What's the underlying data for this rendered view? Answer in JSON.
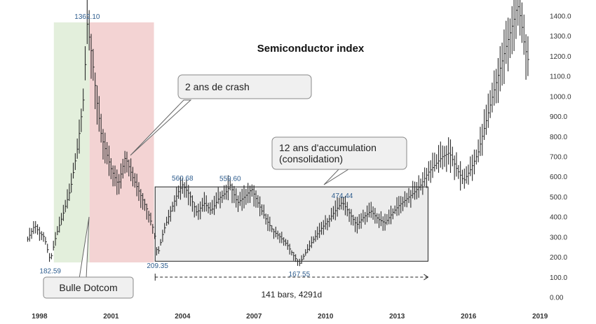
{
  "chart_data": {
    "type": "line",
    "title": "Semiconductor index",
    "x_tick_labels": [
      "1998",
      "2001",
      "2004",
      "2007",
      "2010",
      "2013",
      "2016",
      "2019"
    ],
    "y_tick_labels": [
      "0.00",
      "100.0",
      "200.0",
      "300.0",
      "400.0",
      "500.0",
      "600.0",
      "700.0",
      "800.0",
      "900.0",
      "1000.0",
      "1100.0",
      "1200.0",
      "1300.0",
      "1400.0"
    ],
    "ylim": [
      0,
      1400
    ],
    "xlim": [
      1997.4,
      2018.7
    ],
    "grid": false,
    "series": [
      {
        "x": [
          1997.5,
          1997.8,
          1998.0,
          1998.2,
          1998.45,
          1998.7,
          1999.0,
          1999.3,
          1999.6,
          1999.85,
          2000.0,
          2000.2,
          2000.4,
          2000.6,
          2000.8,
          2001.0,
          2001.3,
          2001.6,
          2001.9,
          2002.2,
          2002.5,
          2002.8,
          2002.95,
          2003.2,
          2003.5,
          2003.8,
          2004.0,
          2004.3,
          2004.6,
          2004.9,
          2005.2,
          2005.5,
          2005.8,
          2006.0,
          2006.3,
          2006.6,
          2006.9,
          2007.2,
          2007.5,
          2007.8,
          2008.1,
          2008.4,
          2008.7,
          2008.9,
          2009.2,
          2009.5,
          2009.8,
          2010.1,
          2010.4,
          2010.7,
          2011.0,
          2011.3,
          2011.6,
          2011.9,
          2012.2,
          2012.5,
          2012.8,
          2013.1,
          2013.4,
          2013.7,
          2014.0,
          2014.3,
          2014.6,
          2014.9,
          2015.2,
          2015.5,
          2015.8,
          2016.1,
          2016.4,
          2016.7,
          2017.0,
          2017.3,
          2017.6,
          2017.9,
          2018.05,
          2018.2,
          2018.35,
          2018.5
        ],
        "values": [
          290,
          360,
          320,
          300,
          182.59,
          310,
          420,
          540,
          750,
          1000,
          1362.1,
          1200,
          980,
          800,
          720,
          640,
          560,
          700,
          600,
          520,
          440,
          330,
          209.35,
          330,
          430,
          520,
          560.68,
          510,
          420,
          470,
          430,
          490,
          520,
          559.6,
          470,
          500,
          540,
          460,
          390,
          330,
          300,
          260,
          200,
          167.55,
          230,
          290,
          340,
          380,
          430,
          474.44,
          420,
          360,
          400,
          430,
          390,
          370,
          420,
          460,
          490,
          520,
          560,
          620,
          660,
          700,
          720,
          640,
          580,
          640,
          720,
          860,
          1000,
          1130,
          1260,
          1380,
          1460,
          1380,
          1250,
          1180
        ]
      }
    ],
    "point_labels": [
      {
        "text": "1362.10",
        "x": 2000.0,
        "y": 1362.1
      },
      {
        "text": "182.59",
        "x": 1998.45,
        "y": 182.59
      },
      {
        "text": "560.68",
        "x": 2004.0,
        "y": 560.68
      },
      {
        "text": "559.60",
        "x": 2006.0,
        "y": 559.6
      },
      {
        "text": "474.44",
        "x": 2010.7,
        "y": 474.44
      },
      {
        "text": "209.35",
        "x": 2002.95,
        "y": 209.35
      },
      {
        "text": "167.55",
        "x": 2008.9,
        "y": 167.55
      }
    ],
    "annotations": {
      "crash": "2 ans de crash",
      "accumulation_line1": "12 ans d'accumulation",
      "accumulation_line2": "(consolidation)",
      "dotcom": "Bulle Dotcom",
      "measure": "141 bars, 4291d"
    },
    "regions": [
      {
        "name": "Bulle Dotcom",
        "x0": 1998.6,
        "x1": 2000.1,
        "color": "#e3efdc"
      },
      {
        "name": "2 ans de crash",
        "x0": 2000.1,
        "x1": 2002.8,
        "color": "#f3d3d3"
      }
    ],
    "consolidation_box": {
      "x0": 2002.85,
      "x1": 2014.3,
      "y0": 180,
      "y1": 550
    },
    "measure_span": {
      "x0": 2002.85,
      "x1": 2014.3,
      "y": 100
    }
  }
}
